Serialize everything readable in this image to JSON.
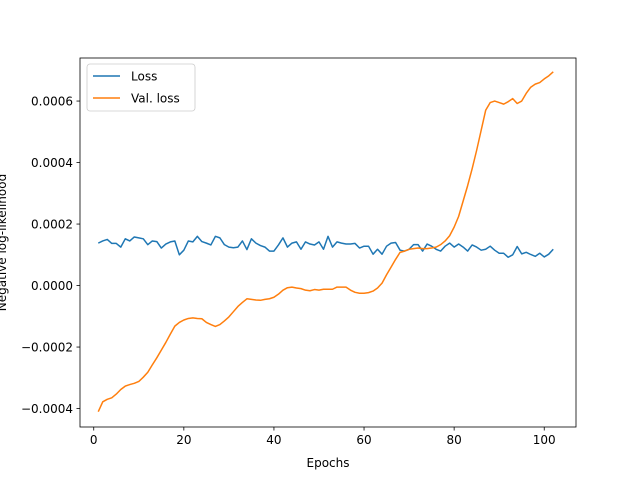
{
  "chart_data": {
    "type": "line",
    "xlabel": "Epochs",
    "ylabel": "Negative log-likelihood",
    "xlim": [
      -3.05,
      107.05
    ],
    "ylim": [
      -0.00046,
      0.00074
    ],
    "xticks": [
      0,
      20,
      40,
      60,
      80,
      100
    ],
    "yticks": [
      -0.0004,
      -0.0002,
      0.0,
      0.0002,
      0.0004,
      0.0006
    ],
    "ytick_labels": [
      "−0.0004",
      "−0.0002",
      "0.0000",
      "0.0002",
      "0.0004",
      "0.0006"
    ],
    "grid": false,
    "legend_position": "top-left",
    "x": [
      1,
      2,
      3,
      4,
      5,
      6,
      7,
      8,
      9,
      10,
      11,
      12,
      13,
      14,
      15,
      16,
      17,
      18,
      19,
      20,
      21,
      22,
      23,
      24,
      25,
      26,
      27,
      28,
      29,
      30,
      31,
      32,
      33,
      34,
      35,
      36,
      37,
      38,
      39,
      40,
      41,
      42,
      43,
      44,
      45,
      46,
      47,
      48,
      49,
      50,
      51,
      52,
      53,
      54,
      55,
      56,
      57,
      58,
      59,
      60,
      61,
      62,
      63,
      64,
      65,
      66,
      67,
      68,
      69,
      70,
      71,
      72,
      73,
      74,
      75,
      76,
      77,
      78,
      79,
      80,
      81,
      82,
      83,
      84,
      85,
      86,
      87,
      88,
      89,
      90,
      91,
      92,
      93,
      94,
      95,
      96,
      97,
      98,
      99,
      100,
      101,
      102
    ],
    "series": [
      {
        "name": "Loss",
        "color": "#1f77b4",
        "values": [
          0.000138,
          0.000145,
          0.00015,
          0.000137,
          0.000137,
          0.000125,
          0.000152,
          0.000145,
          0.000158,
          0.000155,
          0.000152,
          0.000133,
          0.000145,
          0.000143,
          0.000122,
          0.000135,
          0.000142,
          0.000145,
          0.0001,
          0.000115,
          0.000145,
          0.000142,
          0.00016,
          0.000143,
          0.000138,
          0.000132,
          0.00016,
          0.000155,
          0.000133,
          0.000125,
          0.000123,
          0.000125,
          0.000145,
          0.000117,
          0.000152,
          0.000138,
          0.00013,
          0.000125,
          0.000112,
          0.000112,
          0.000132,
          0.000155,
          0.000125,
          0.000138,
          0.000142,
          0.000118,
          0.000142,
          0.000135,
          0.000132,
          0.000142,
          0.000118,
          0.00016,
          0.000125,
          0.000142,
          0.000138,
          0.000135,
          0.000135,
          0.000137,
          0.000122,
          0.000128,
          0.000128,
          0.000102,
          0.000118,
          0.000102,
          0.000128,
          0.000138,
          0.00014,
          0.000115,
          0.000112,
          0.000118,
          0.000133,
          0.000133,
          0.000112,
          0.000135,
          0.000128,
          0.000118,
          0.000112,
          0.000128,
          0.000138,
          0.000125,
          0.000135,
          0.000125,
          0.000112,
          0.000132,
          0.000125,
          0.000115,
          0.000118,
          0.000128,
          0.000115,
          0.000105,
          0.000105,
          9.2e-05,
          0.0001,
          0.000127,
          0.000103,
          0.000108,
          0.000101,
          9.5e-05,
          0.000105,
          9.3e-05,
          0.000102,
          0.000118
        ]
      },
      {
        "name": "Val. loss",
        "color": "#ff7f0e",
        "values": [
          -0.00041,
          -0.000378,
          -0.00037,
          -0.000365,
          -0.000353,
          -0.000338,
          -0.000327,
          -0.000322,
          -0.000318,
          -0.000312,
          -0.000298,
          -0.000282,
          -0.000258,
          -0.000235,
          -0.00021,
          -0.000185,
          -0.000158,
          -0.000132,
          -0.00012,
          -0.000112,
          -0.000107,
          -0.000105,
          -0.000107,
          -0.000108,
          -0.00012,
          -0.000127,
          -0.000133,
          -0.000127,
          -0.000115,
          -0.000102,
          -8.5e-05,
          -6.8e-05,
          -5.5e-05,
          -4.3e-05,
          -4.5e-05,
          -4.7e-05,
          -4.8e-05,
          -4.5e-05,
          -4.3e-05,
          -3.8e-05,
          -2.8e-05,
          -1.5e-05,
          -7e-06,
          -5e-06,
          -8e-06,
          -1e-05,
          -1.5e-05,
          -1.7e-05,
          -1.3e-05,
          -1.5e-05,
          -1.2e-05,
          -1.2e-05,
          -1.2e-05,
          -5e-06,
          -5e-06,
          -5e-06,
          -1.5e-05,
          -2.2e-05,
          -2.5e-05,
          -2.5e-05,
          -2.3e-05,
          -1.8e-05,
          -8e-06,
          8e-06,
          3.5e-05,
          6e-05,
          8.5e-05,
          0.000108,
          0.000112,
          0.000118,
          0.00012,
          0.000122,
          0.00012,
          0.00012,
          0.000122,
          0.000125,
          0.000133,
          0.000145,
          0.000162,
          0.00019,
          0.000225,
          0.000275,
          0.000325,
          0.00038,
          0.00044,
          0.000505,
          0.00057,
          0.000595,
          0.0006,
          0.000595,
          0.00059,
          0.000598,
          0.000608,
          0.000592,
          0.0006,
          0.000625,
          0.000645,
          0.000655,
          0.00066,
          0.000672,
          0.000682,
          0.000695
        ]
      }
    ]
  }
}
